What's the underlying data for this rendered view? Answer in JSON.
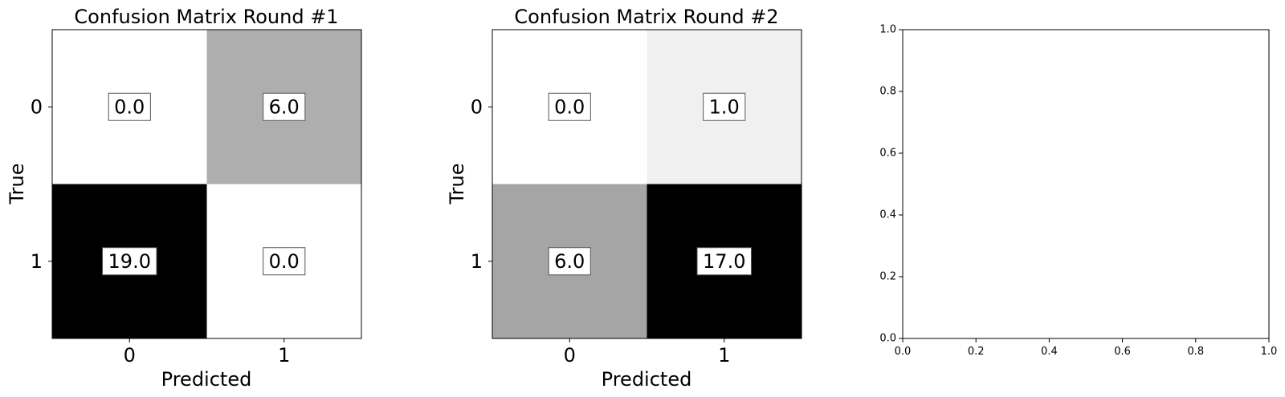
{
  "chart_data": [
    {
      "type": "heatmap",
      "title": "Confusion Matrix Round #1",
      "xlabel": "Predicted",
      "ylabel": "True",
      "x_categories": [
        "0",
        "1"
      ],
      "y_categories": [
        "0",
        "1"
      ],
      "values": [
        [
          0.0,
          6.0
        ],
        [
          19.0,
          0.0
        ]
      ],
      "cell_labels": [
        [
          "0.0",
          "6.0"
        ],
        [
          "19.0",
          "0.0"
        ]
      ],
      "colormap": "gray_r",
      "vmin": 0,
      "vmax": 19
    },
    {
      "type": "heatmap",
      "title": "Confusion Matrix Round #2",
      "xlabel": "Predicted",
      "ylabel": "True",
      "x_categories": [
        "0",
        "1"
      ],
      "y_categories": [
        "0",
        "1"
      ],
      "values": [
        [
          0.0,
          1.0
        ],
        [
          6.0,
          17.0
        ]
      ],
      "cell_labels": [
        [
          "0.0",
          "1.0"
        ],
        [
          "6.0",
          "17.0"
        ]
      ],
      "colormap": "gray_r",
      "vmin": 0,
      "vmax": 17
    },
    {
      "type": "line",
      "title": "",
      "xlabel": "",
      "ylabel": "",
      "series": [],
      "xlim": [
        0.0,
        1.0
      ],
      "ylim": [
        0.0,
        1.0
      ],
      "x_ticks": [
        "0.0",
        "0.2",
        "0.4",
        "0.6",
        "0.8",
        "1.0"
      ],
      "y_ticks": [
        "0.0",
        "0.2",
        "0.4",
        "0.6",
        "0.8",
        "1.0"
      ]
    }
  ]
}
